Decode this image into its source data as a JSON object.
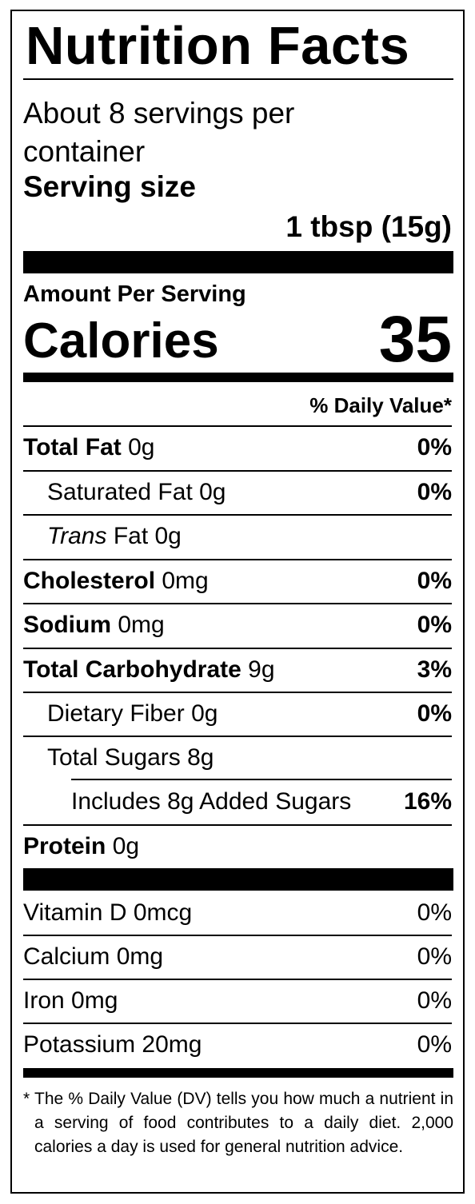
{
  "title": "Nutrition Facts",
  "servings_per_container": "About 8 servings per container",
  "serving_size_label": "Serving size",
  "serving_size_value": "1 tbsp (15g)",
  "amount_per_serving": "Amount Per Serving",
  "calories_label": "Calories",
  "calories_value": "35",
  "daily_value_header": "% Daily Value*",
  "nutrients": [
    {
      "name": "Total Fat",
      "amount": "0g",
      "dv": "0%"
    },
    {
      "name": "Saturated Fat",
      "amount": "0g",
      "dv": "0%"
    },
    {
      "name": "Trans",
      "amount": "Fat 0g",
      "dv": ""
    },
    {
      "name": "Cholesterol",
      "amount": "0mg",
      "dv": "0%"
    },
    {
      "name": "Sodium",
      "amount": "0mg",
      "dv": "0%"
    },
    {
      "name": "Total Carbohydrate",
      "amount": "9g",
      "dv": "3%"
    },
    {
      "name": "Dietary Fiber",
      "amount": "0g",
      "dv": "0%"
    },
    {
      "name": "Total Sugars",
      "amount": "8g",
      "dv": ""
    },
    {
      "name": "Includes 8g Added Sugars",
      "amount": "",
      "dv": "16%"
    },
    {
      "name": "Protein",
      "amount": "0g",
      "dv": ""
    }
  ],
  "vitamins": [
    {
      "name": "Vitamin D",
      "amount": "0mcg",
      "dv": "0%"
    },
    {
      "name": "Calcium",
      "amount": "0mg",
      "dv": "0%"
    },
    {
      "name": "Iron",
      "amount": "0mg",
      "dv": "0%"
    },
    {
      "name": "Potassium",
      "amount": "20mg",
      "dv": "0%"
    }
  ],
  "footnote_marker": "*",
  "footnote": "The % Daily Value (DV) tells you how much a nutrient in a serving of food contributes to a daily diet. 2,000 calories a day is used for general nutrition advice."
}
